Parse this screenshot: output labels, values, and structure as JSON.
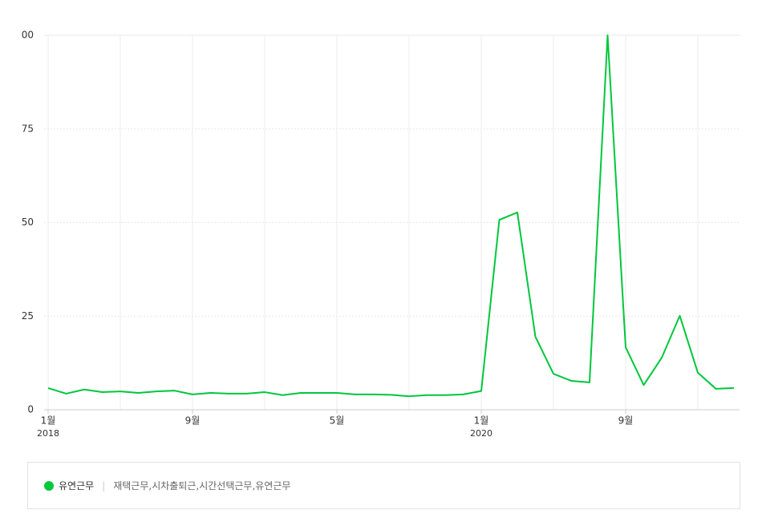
{
  "chart_data": {
    "type": "line",
    "categories": [
      "1월",
      null,
      null,
      null,
      null,
      null,
      null,
      null,
      "9월",
      null,
      null,
      null,
      null,
      null,
      null,
      null,
      "5월",
      null,
      null,
      null,
      null,
      null,
      null,
      null,
      "1월",
      null,
      null,
      null,
      null,
      null,
      null,
      null,
      "9월",
      null,
      null,
      null,
      null,
      null,
      null
    ],
    "category_years": [
      "2018",
      null,
      null,
      null,
      null,
      null,
      null,
      null,
      null,
      null,
      null,
      null,
      null,
      null,
      null,
      null,
      null,
      null,
      null,
      null,
      null,
      null,
      null,
      null,
      "2020",
      null,
      null,
      null,
      null,
      null,
      null,
      null,
      null,
      null,
      null,
      null,
      null,
      null,
      null
    ],
    "series": [
      {
        "name": "유연근무",
        "color": "#00c73c",
        "keywords": "재택근무,시차출퇴근,시간선택근무,유연근무",
        "values": [
          5.8,
          4.3,
          5.4,
          4.7,
          4.9,
          4.5,
          4.9,
          5.1,
          4.1,
          4.5,
          4.3,
          4.3,
          4.7,
          3.9,
          4.5,
          4.5,
          4.5,
          4.1,
          4.1,
          4.0,
          3.6,
          3.9,
          3.9,
          4.1,
          5.0,
          50.7,
          52.7,
          19.5,
          9.6,
          7.7,
          7.3,
          100,
          16.7,
          6.6,
          13.9,
          25.1,
          9.9,
          5.6,
          5.8
        ]
      }
    ],
    "ylim": [
      0,
      100
    ],
    "yticks": [
      0,
      25,
      50,
      75,
      {
        "value": 100,
        "label": "00"
      }
    ],
    "grid": true
  }
}
